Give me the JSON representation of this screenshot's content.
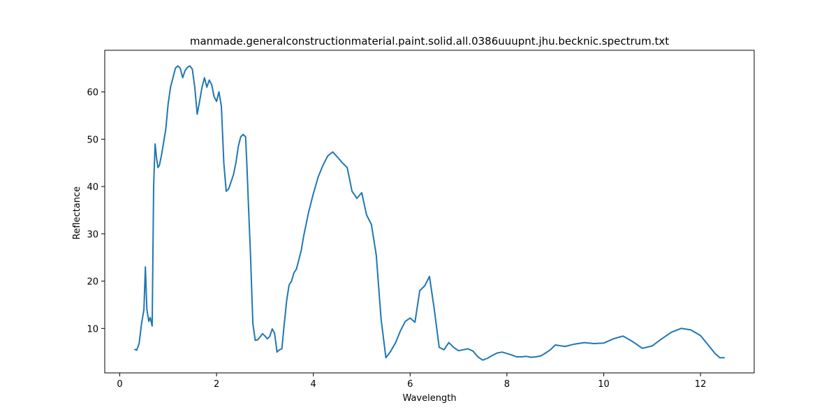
{
  "chart_data": {
    "type": "line",
    "title": "manmade.generalconstructionmaterial.paint.solid.all.0386uuupnt.jhu.becknic.spectrum.txt",
    "xlabel": "Wavelength",
    "ylabel": "Reflectance",
    "xlim": [
      -0.31,
      13.11
    ],
    "ylim": [
      0.6,
      68.8
    ],
    "xticks": [
      0,
      2,
      4,
      6,
      8,
      10,
      12
    ],
    "yticks": [
      10,
      20,
      30,
      40,
      50,
      60
    ],
    "grid": false,
    "color": "#1f77b4",
    "series": [
      {
        "x": [
          0.3,
          0.35,
          0.4,
          0.45,
          0.5,
          0.53,
          0.56,
          0.6,
          0.63,
          0.67,
          0.7,
          0.73,
          0.76,
          0.79,
          0.82,
          0.86,
          0.9,
          0.95,
          1.0,
          1.05,
          1.1,
          1.15,
          1.2,
          1.25,
          1.3,
          1.35,
          1.4,
          1.45,
          1.5,
          1.55,
          1.6,
          1.65,
          1.7,
          1.75,
          1.8,
          1.85,
          1.9,
          1.95,
          2.0,
          2.05,
          2.1,
          2.15,
          2.2,
          2.25,
          2.3,
          2.35,
          2.4,
          2.45,
          2.5,
          2.55,
          2.6,
          2.63,
          2.66,
          2.7,
          2.75,
          2.8,
          2.85,
          2.9,
          2.95,
          3.0,
          3.05,
          3.1,
          3.15,
          3.2,
          3.25,
          3.3,
          3.35,
          3.4,
          3.45,
          3.5,
          3.55,
          3.6,
          3.65,
          3.7,
          3.75,
          3.8,
          3.9,
          4.0,
          4.1,
          4.2,
          4.3,
          4.4,
          4.5,
          4.6,
          4.7,
          4.8,
          4.9,
          5.0,
          5.1,
          5.2,
          5.3,
          5.4,
          5.5,
          5.6,
          5.7,
          5.8,
          5.9,
          6.0,
          6.1,
          6.2,
          6.3,
          6.4,
          6.5,
          6.6,
          6.7,
          6.8,
          6.9,
          7.0,
          7.1,
          7.2,
          7.3,
          7.4,
          7.5,
          7.6,
          7.7,
          7.8,
          7.9,
          8.0,
          8.1,
          8.2,
          8.3,
          8.4,
          8.5,
          8.6,
          8.7,
          8.8,
          8.9,
          9.0,
          9.2,
          9.4,
          9.6,
          9.8,
          10.0,
          10.2,
          10.4,
          10.6,
          10.8,
          11.0,
          11.2,
          11.4,
          11.6,
          11.8,
          12.0,
          12.2,
          12.3,
          12.4,
          12.5
        ],
        "y": [
          5.6,
          5.4,
          6.8,
          11.0,
          14.0,
          23.0,
          14.0,
          11.5,
          12.3,
          10.5,
          40.0,
          49.0,
          46.0,
          44.0,
          44.5,
          46.5,
          49.0,
          52.0,
          57.5,
          61.0,
          63.0,
          65.0,
          65.5,
          65.0,
          63.0,
          64.5,
          65.2,
          65.5,
          64.8,
          61.0,
          55.3,
          58.0,
          61.0,
          63.0,
          61.0,
          62.5,
          61.5,
          59.0,
          58.0,
          60.0,
          57.0,
          45.0,
          39.0,
          39.5,
          41.0,
          42.5,
          45.0,
          48.5,
          50.5,
          51.0,
          50.5,
          44.0,
          36.0,
          26.0,
          11.0,
          7.5,
          7.6,
          8.2,
          8.9,
          8.4,
          7.8,
          8.3,
          9.9,
          9.0,
          5.0,
          5.5,
          5.7,
          11.0,
          16.0,
          19.2,
          20.0,
          21.8,
          22.5,
          24.5,
          26.5,
          29.5,
          34.5,
          38.5,
          42.0,
          44.5,
          46.5,
          47.3,
          46.2,
          45.0,
          44.0,
          39.0,
          37.5,
          38.7,
          34.0,
          32.0,
          25.5,
          12.0,
          3.8,
          5.2,
          7.0,
          9.5,
          11.5,
          12.2,
          11.3,
          18.0,
          19.0,
          21.0,
          14.0,
          6.0,
          5.5,
          7.0,
          6.0,
          5.3,
          5.5,
          5.7,
          5.2,
          4.0,
          3.3,
          3.7,
          4.3,
          4.8,
          5.0,
          4.7,
          4.4,
          4.0,
          4.0,
          4.1,
          3.9,
          4.0,
          4.2,
          4.8,
          5.5,
          6.5,
          6.2,
          6.7,
          7.0,
          6.8,
          6.9,
          7.8,
          8.4,
          7.2,
          5.8,
          6.3,
          7.8,
          9.2,
          10.0,
          9.7,
          8.5,
          6.0,
          4.7,
          3.8,
          3.8
        ]
      }
    ]
  }
}
